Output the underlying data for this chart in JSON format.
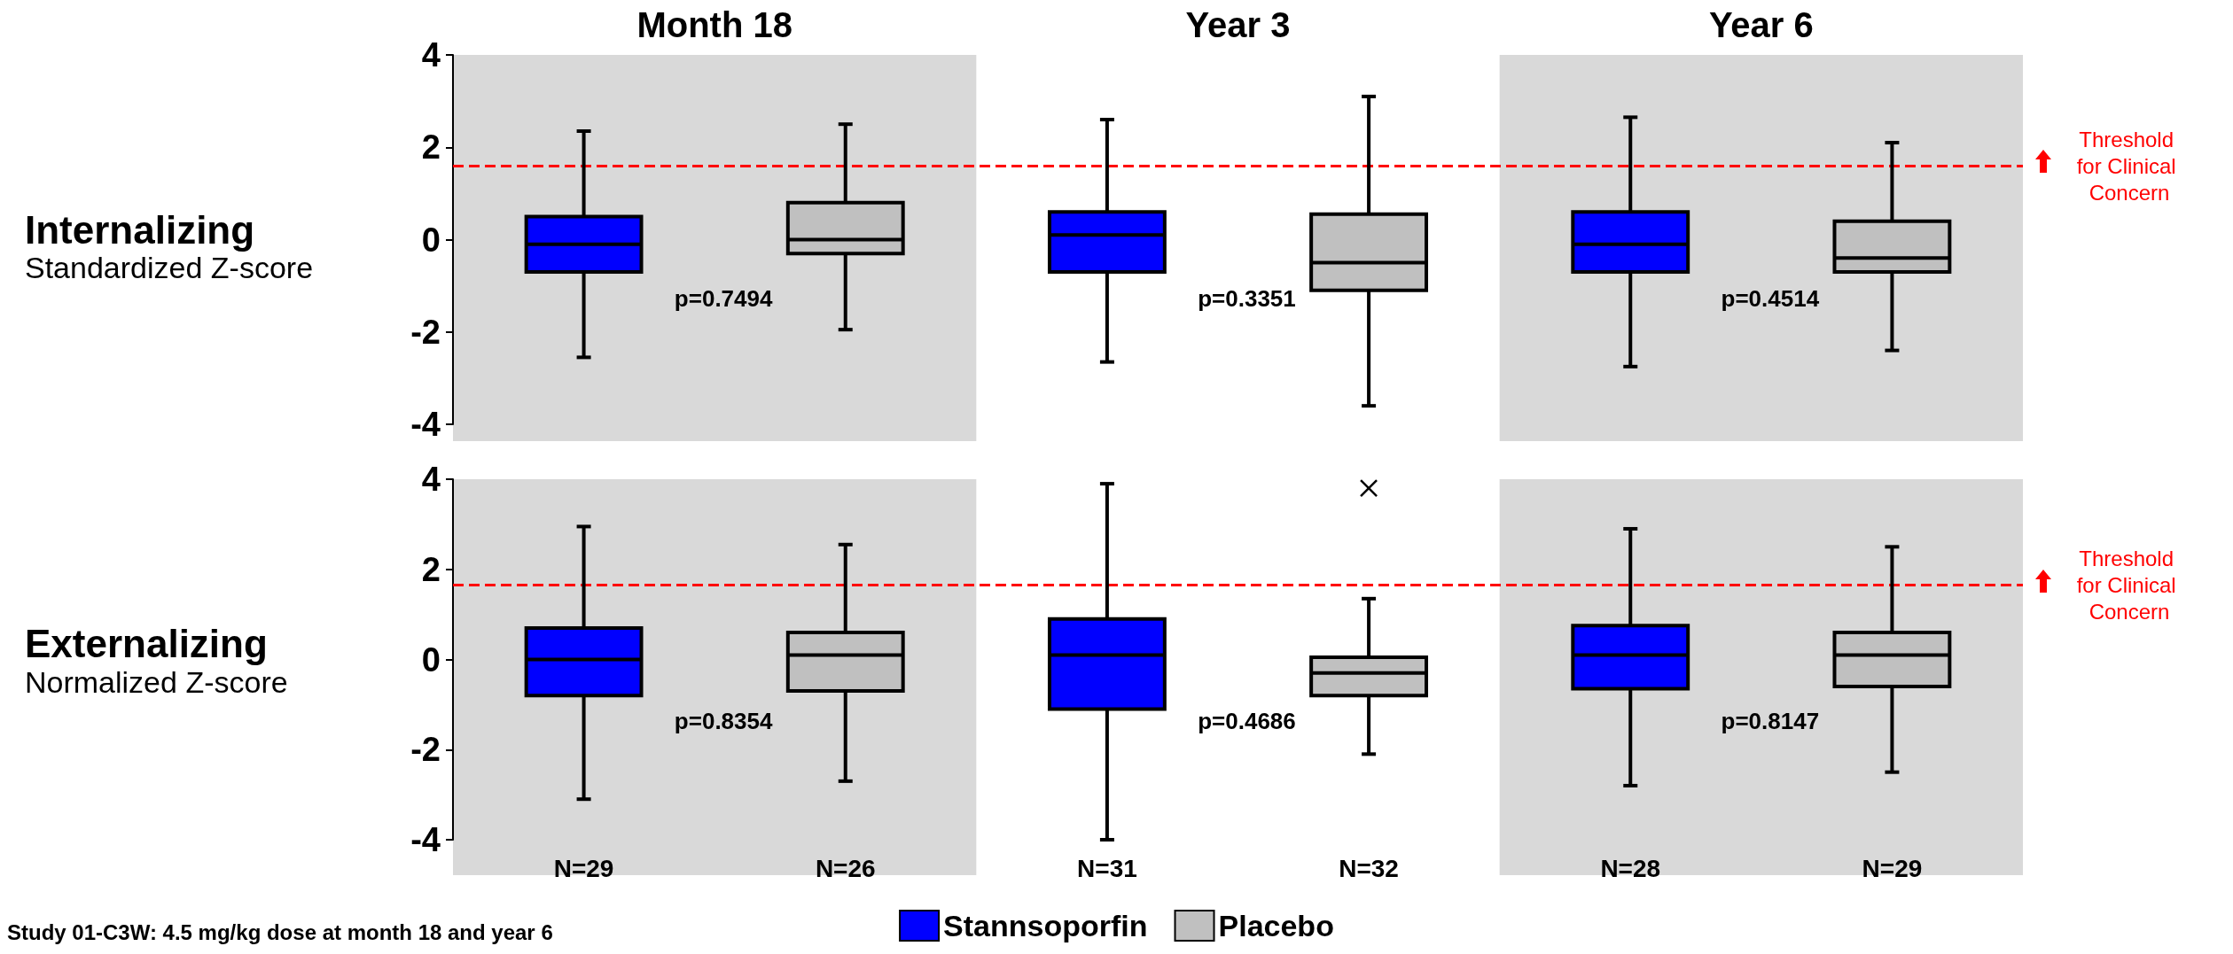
{
  "chart_data": [
    {
      "type": "box",
      "ylabel": "Internalizing",
      "subtitle": "Standardized Z-score",
      "categories": [
        "Month 18",
        "Year 3",
        "Year 6"
      ],
      "ylim": [
        -4,
        4
      ],
      "yticks": [
        -4,
        -2,
        0,
        2,
        4
      ],
      "series": [
        {
          "color": "#0000ff",
          "boxes": [
            {
              "low": -2.55,
              "q1": -0.7,
              "median": -0.1,
              "q3": 0.5,
              "high": 2.35
            },
            {
              "low": -2.65,
              "q1": -0.7,
              "median": 0.1,
              "q3": 0.6,
              "high": 2.6
            },
            {
              "low": -2.75,
              "q1": -0.7,
              "median": -0.1,
              "q3": 0.6,
              "high": 2.65
            }
          ]
        },
        {
          "color": "#c0c0c0",
          "boxes": [
            {
              "low": -1.95,
              "q1": -0.3,
              "median": 0.0,
              "q3": 0.8,
              "high": 2.5
            },
            {
              "low": -3.6,
              "q1": -1.1,
              "median": -0.5,
              "q3": 0.55,
              "high": 3.1
            },
            {
              "low": -2.4,
              "q1": -0.7,
              "median": -0.4,
              "q3": 0.4,
              "high": 2.1
            }
          ]
        }
      ],
      "ref_lines": [
        {
          "axis": "y",
          "value": 1.6,
          "label": "Threshold for Clinical Concern",
          "color": "#ff0000",
          "line_style": "dashed"
        }
      ],
      "bands": [
        {
          "axis": "x",
          "from": "Month 18",
          "to": "Month 18",
          "color": "#d9d9d9"
        },
        {
          "axis": "x",
          "from": "Year 6",
          "to": "Year 6",
          "color": "#d9d9d9"
        }
      ],
      "annotations": [
        "p=0.7494",
        "p=0.3351",
        "p=0.4514"
      ],
      "grid": false,
      "legend": false
    },
    {
      "type": "box",
      "ylabel": "Externalizing",
      "subtitle": "Normalized Z-score",
      "categories": [
        "Month 18",
        "Year 3",
        "Year 6"
      ],
      "ylim": [
        -4,
        4
      ],
      "yticks": [
        -4,
        -2,
        0,
        2,
        4
      ],
      "tick_labels": "y",
      "series": [
        {
          "name": "Stannsoporfin",
          "color": "#0000ff",
          "value_labels": [
            "N=29",
            "N=31",
            "N=28"
          ],
          "boxes": [
            {
              "low": -3.1,
              "q1": -0.8,
              "median": 0.0,
              "q3": 0.7,
              "high": 2.95
            },
            {
              "low": -4.0,
              "q1": -1.1,
              "median": 0.1,
              "q3": 0.9,
              "high": 3.9
            },
            {
              "low": -2.8,
              "q1": -0.65,
              "median": 0.1,
              "q3": 0.75,
              "high": 2.9
            }
          ]
        },
        {
          "name": "Placebo",
          "color": "#c0c0c0",
          "value_labels": [
            "N=26",
            "N=32",
            "N=29"
          ],
          "boxes": [
            {
              "low": -2.7,
              "q1": -0.7,
              "median": 0.1,
              "q3": 0.6,
              "high": 2.55
            },
            {
              "low": -2.1,
              "q1": -0.8,
              "median": -0.3,
              "q3": 0.05,
              "high": 1.35,
              "outliers": [
                3.8
              ]
            },
            {
              "low": -2.5,
              "q1": -0.6,
              "median": 0.1,
              "q3": 0.6,
              "high": 2.5
            }
          ]
        }
      ],
      "ref_lines": [
        {
          "axis": "y",
          "value": 1.65,
          "label": "Threshold for Clinical Concern",
          "color": "#ff0000",
          "line_style": "dashed"
        }
      ],
      "bands": [
        {
          "axis": "x",
          "from": "Month 18",
          "to": "Month 18",
          "color": "#d9d9d9"
        },
        {
          "axis": "x",
          "from": "Year 6",
          "to": "Year 6",
          "color": "#d9d9d9"
        }
      ],
      "annotations": [
        "p=0.8354",
        "p=0.4686",
        "p=0.8147",
        "Study 01-C3W: 4.5 mg/kg dose at month 18 and year 6"
      ],
      "grid": false,
      "legend": "bottom"
    }
  ]
}
